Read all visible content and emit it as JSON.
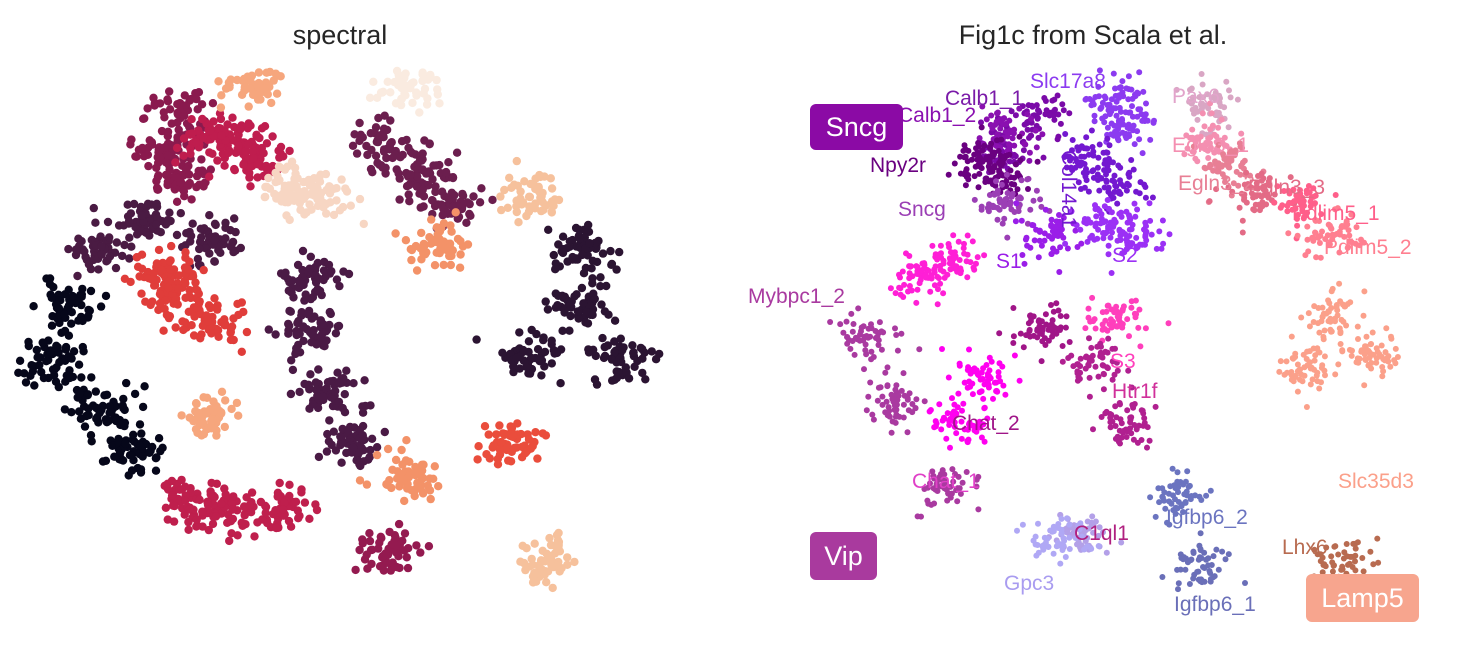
{
  "chart_data": [
    {
      "type": "scatter",
      "title": "spectral",
      "xlabel": "",
      "ylabel": "",
      "grid": false,
      "legend": "none",
      "axes_visible": false,
      "clusters": [
        {
          "color": "#06071a",
          "x": [
            -13.5,
            -14.5,
            -12.0,
            -10.5
          ],
          "y": [
            2.0,
            -1.5,
            -4.0,
            -6.5
          ]
        },
        {
          "color": "#2b1432",
          "x": [
            12.0,
            9.5,
            14.0,
            12.0
          ],
          "y": [
            2.0,
            -1.0,
            -1.0,
            5.5
          ]
        },
        {
          "color": "#4a1b43",
          "x": [
            -12.0,
            -9.5,
            -6.5
          ],
          "y": [
            5.5,
            7.0,
            6.0
          ]
        },
        {
          "color": "#4a1a45",
          "x": [
            -1.5,
            -1.5,
            -0.5,
            0.5
          ],
          "y": [
            3.5,
            0.5,
            -3.0,
            -6.0
          ]
        },
        {
          "color": "#6b1e4e",
          "x": [
            2.0,
            4.0,
            5.5
          ],
          "y": [
            11.5,
            10.0,
            8.0
          ]
        },
        {
          "color": "#8a1a4e",
          "x": [
            -8.0,
            -9.0,
            -8.0
          ],
          "y": [
            13.5,
            11.0,
            9.5
          ]
        },
        {
          "color": "#941a50",
          "x": [
            2.5
          ],
          "y": [
            -12.5
          ]
        },
        {
          "color": "#bf1d4e",
          "x": [
            -5.0,
            -4.0,
            -6.5
          ],
          "y": [
            11.5,
            10.5,
            12.0
          ]
        },
        {
          "color": "#bf1f4d",
          "x": [
            -5.5,
            -3.0,
            -7.5
          ],
          "y": [
            -10.0,
            -10.0,
            -9.5
          ]
        },
        {
          "color": "#e03d3a",
          "x": [
            -8.0,
            -6.5,
            -9.0
          ],
          "y": [
            2.5,
            1.0,
            4.0
          ]
        },
        {
          "color": "#ea4d3c",
          "x": [
            8.5
          ],
          "y": [
            -6.0
          ]
        },
        {
          "color": "#f39268",
          "x": [
            3.5,
            5.0
          ],
          "y": [
            -8.0,
            5.5
          ]
        },
        {
          "color": "#f6a67d",
          "x": [
            -4.5,
            -6.5
          ],
          "y": [
            15.0,
            -4.5
          ]
        },
        {
          "color": "#f6c19c",
          "x": [
            9.5,
            10.5
          ],
          "y": [
            8.5,
            -13.0
          ]
        },
        {
          "color": "#f7d6c3",
          "x": [
            -2.5,
            -1.0
          ],
          "y": [
            9.0,
            8.5
          ]
        },
        {
          "color": "#faebe0",
          "x": [
            3.5
          ],
          "y": [
            15.0
          ]
        }
      ]
    },
    {
      "type": "scatter",
      "title": "Fig1c from Scala et al.",
      "xlabel": "",
      "ylabel": "",
      "grid": false,
      "legend": "none",
      "axes_visible": false,
      "clusters": [
        {
          "name": "Calb1_1",
          "color": "#7a0aa8",
          "x": [
            -3.5,
            -5.5
          ],
          "y": [
            13.5,
            11.5
          ]
        },
        {
          "name": "Calb1_2",
          "color": "#8a10b0",
          "x": [
            -5.0
          ],
          "y": [
            12.5
          ]
        },
        {
          "name": "Npy2r",
          "color": "#6a0080",
          "x": [
            -6.5,
            -5.5
          ],
          "y": [
            11.0,
            10.0
          ]
        },
        {
          "name": "Sncg",
          "color": "#9b3fb5",
          "x": [
            -5.0
          ],
          "y": [
            8.5
          ]
        },
        {
          "name": "Slc17a8",
          "color": "#8c3bf0",
          "x": [
            0.5,
            1.0
          ],
          "y": [
            14.5,
            13.0
          ]
        },
        {
          "name": "Col14a1",
          "color": "#7318d0",
          "x": [
            -1.0,
            0.5
          ],
          "y": [
            11.0,
            9.5
          ]
        },
        {
          "name": "S1",
          "color": "#9a1ee8",
          "x": [
            -3.0
          ],
          "y": [
            6.5
          ]
        },
        {
          "name": "S2",
          "color": "#9b30f5",
          "x": [
            1.5,
            0.0
          ],
          "y": [
            6.5,
            7.0
          ]
        },
        {
          "name": "Pax6",
          "color": "#d9a6c4",
          "x": [
            5.5
          ],
          "y": [
            14.0
          ]
        },
        {
          "name": "Egln3_1",
          "color": "#f48fb1",
          "x": [
            5.5
          ],
          "y": [
            12.0
          ]
        },
        {
          "name": "Egln3_2",
          "color": "#e87f95",
          "x": [
            6.5
          ],
          "y": [
            10.5
          ]
        },
        {
          "name": "Egln3_3",
          "color": "#e36b86",
          "x": [
            8.0
          ],
          "y": [
            9.0
          ]
        },
        {
          "name": "Pdlim5_1",
          "color": "#ff5f8a",
          "x": [
            10.5
          ],
          "y": [
            8.5
          ]
        },
        {
          "name": "Pdlim5_2",
          "color": "#ff7f90",
          "x": [
            12.0
          ],
          "y": [
            6.5
          ]
        },
        {
          "name": "Slc35d3",
          "color": "#fba08a",
          "x": [
            12.0,
            10.5,
            14.0
          ],
          "y": [
            1.5,
            -1.5,
            -0.5
          ]
        },
        {
          "name": "Lhx6",
          "color": "#b86b50",
          "x": [
            12.5
          ],
          "y": [
            -13.0
          ]
        },
        {
          "name": "Mybpc1_2",
          "color": "#ff1fd6",
          "x": [
            -8.0,
            -9.5
          ],
          "y": [
            5.0,
            4.0
          ]
        },
        {
          "name": "S3",
          "color": "#ff3fbc",
          "x": [
            0.5
          ],
          "y": [
            1.5
          ]
        },
        {
          "name": "Htr1f",
          "color": "#b02090",
          "x": [
            -0.5,
            1.0
          ],
          "y": [
            -1.0,
            -4.5
          ]
        },
        {
          "name": "Chat_2",
          "color": "#a01588",
          "x": [
            -3.5
          ],
          "y": [
            1.0
          ]
        },
        {
          "name": "Chat_1",
          "color": "#ff00f0",
          "x": [
            -6.5,
            -7.5
          ],
          "y": [
            -2.0,
            -4.5
          ]
        },
        {
          "name": "Vip",
          "color": "#a93aa0",
          "x": [
            -12.5,
            -11.0,
            -8.5
          ],
          "y": [
            0.5,
            -3.5,
            -8.5
          ]
        },
        {
          "name": "C1ql1",
          "color": "#b3a0e8",
          "x": [
            -1.5
          ],
          "y": [
            -11.0
          ]
        },
        {
          "name": "Gpc3",
          "color": "#b0a8f5",
          "x": [
            -2.5
          ],
          "y": [
            -11.5
          ]
        },
        {
          "name": "Igfbp6_2",
          "color": "#6b74c0",
          "x": [
            4.0
          ],
          "y": [
            -9.0
          ]
        },
        {
          "name": "Igfbp6_1",
          "color": "#6a6fb8",
          "x": [
            5.0
          ],
          "y": [
            -13.0
          ]
        }
      ],
      "annotations": [
        {
          "text": "Calb1_1",
          "color": "#7a1aa8"
        },
        {
          "text": "Slc17a8",
          "color": "#8c3bf0"
        },
        {
          "text": "Calb1_2",
          "color": "#8a10b0"
        },
        {
          "text": "Npy2r",
          "color": "#6a0080"
        },
        {
          "text": "Sncg",
          "color": "#9b3fb5"
        },
        {
          "text": "Col14a1",
          "color": "#7318d0"
        },
        {
          "text": "S1",
          "color": "#9a1ee8"
        },
        {
          "text": "S2",
          "color": "#9b30f5"
        },
        {
          "text": "Pax6",
          "color": "#e2a4cb"
        },
        {
          "text": "Egln3_1",
          "color": "#f48fb1"
        },
        {
          "text": "Egln3_2",
          "color": "#e87f95"
        },
        {
          "text": "Egln3_3",
          "color": "#e36b86"
        },
        {
          "text": "Pdlim5_1",
          "color": "#ff5f8a"
        },
        {
          "text": "Pdlim5_2",
          "color": "#ff7f90"
        },
        {
          "text": "Mybpc1_2",
          "color": "#a93aa0"
        },
        {
          "text": "S3",
          "color": "#ff3fbc"
        },
        {
          "text": "Htr1f",
          "color": "#d0309a"
        },
        {
          "text": "Chat_2",
          "color": "#a01588"
        },
        {
          "text": "Chat_1",
          "color": "#e040c8"
        },
        {
          "text": "C1ql1",
          "color": "#b02080"
        },
        {
          "text": "Gpc3",
          "color": "#a99cf0"
        },
        {
          "text": "Igfbp6_2",
          "color": "#6b74c0"
        },
        {
          "text": "Igfbp6_1",
          "color": "#6a6fb8"
        },
        {
          "text": "Lhx6",
          "color": "#b86b50"
        },
        {
          "text": "Slc35d3",
          "color": "#fba08a"
        }
      ],
      "boxed_labels": [
        {
          "text": "Sncg",
          "color": "#8b0aa5"
        },
        {
          "text": "Vip",
          "color": "#a93a9e"
        },
        {
          "text": "Lamp5",
          "color": "#f7a58e"
        }
      ]
    }
  ]
}
